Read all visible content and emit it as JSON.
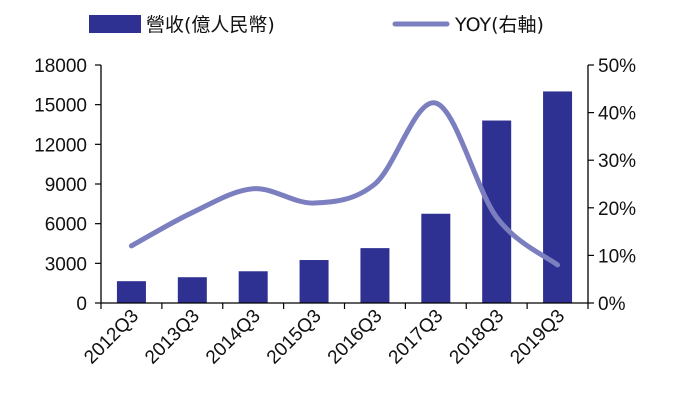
{
  "chart_data": {
    "type": "bar",
    "categories": [
      "2012Q3",
      "2013Q3",
      "2014Q3",
      "2015Q3",
      "2016Q3",
      "2017Q3",
      "2018Q3",
      "2019Q3"
    ],
    "series": [
      {
        "name": "營收(億人民幣)",
        "type": "bar",
        "axis": "left",
        "color": "#2e3192",
        "values": [
          1650,
          1950,
          2400,
          3250,
          4150,
          6750,
          13800,
          16000
        ]
      },
      {
        "name": "YOY(右軸)",
        "type": "line",
        "axis": "right",
        "color": "#7b7fc0",
        "values": [
          0.12,
          0.19,
          0.24,
          0.21,
          0.25,
          0.42,
          0.18,
          0.08
        ]
      }
    ],
    "y_left": {
      "min": 0,
      "max": 18000,
      "ticks": [
        0,
        3000,
        6000,
        9000,
        12000,
        15000,
        18000
      ],
      "tick_labels": [
        "0",
        "3000",
        "6000",
        "9000",
        "12000",
        "15000",
        "18000"
      ]
    },
    "y_right": {
      "min": 0,
      "max": 0.5,
      "ticks": [
        0,
        0.1,
        0.2,
        0.3,
        0.4,
        0.5
      ],
      "tick_labels": [
        "0%",
        "10%",
        "20%",
        "30%",
        "40%",
        "50%"
      ]
    },
    "grid": false,
    "legend_position": "top"
  }
}
